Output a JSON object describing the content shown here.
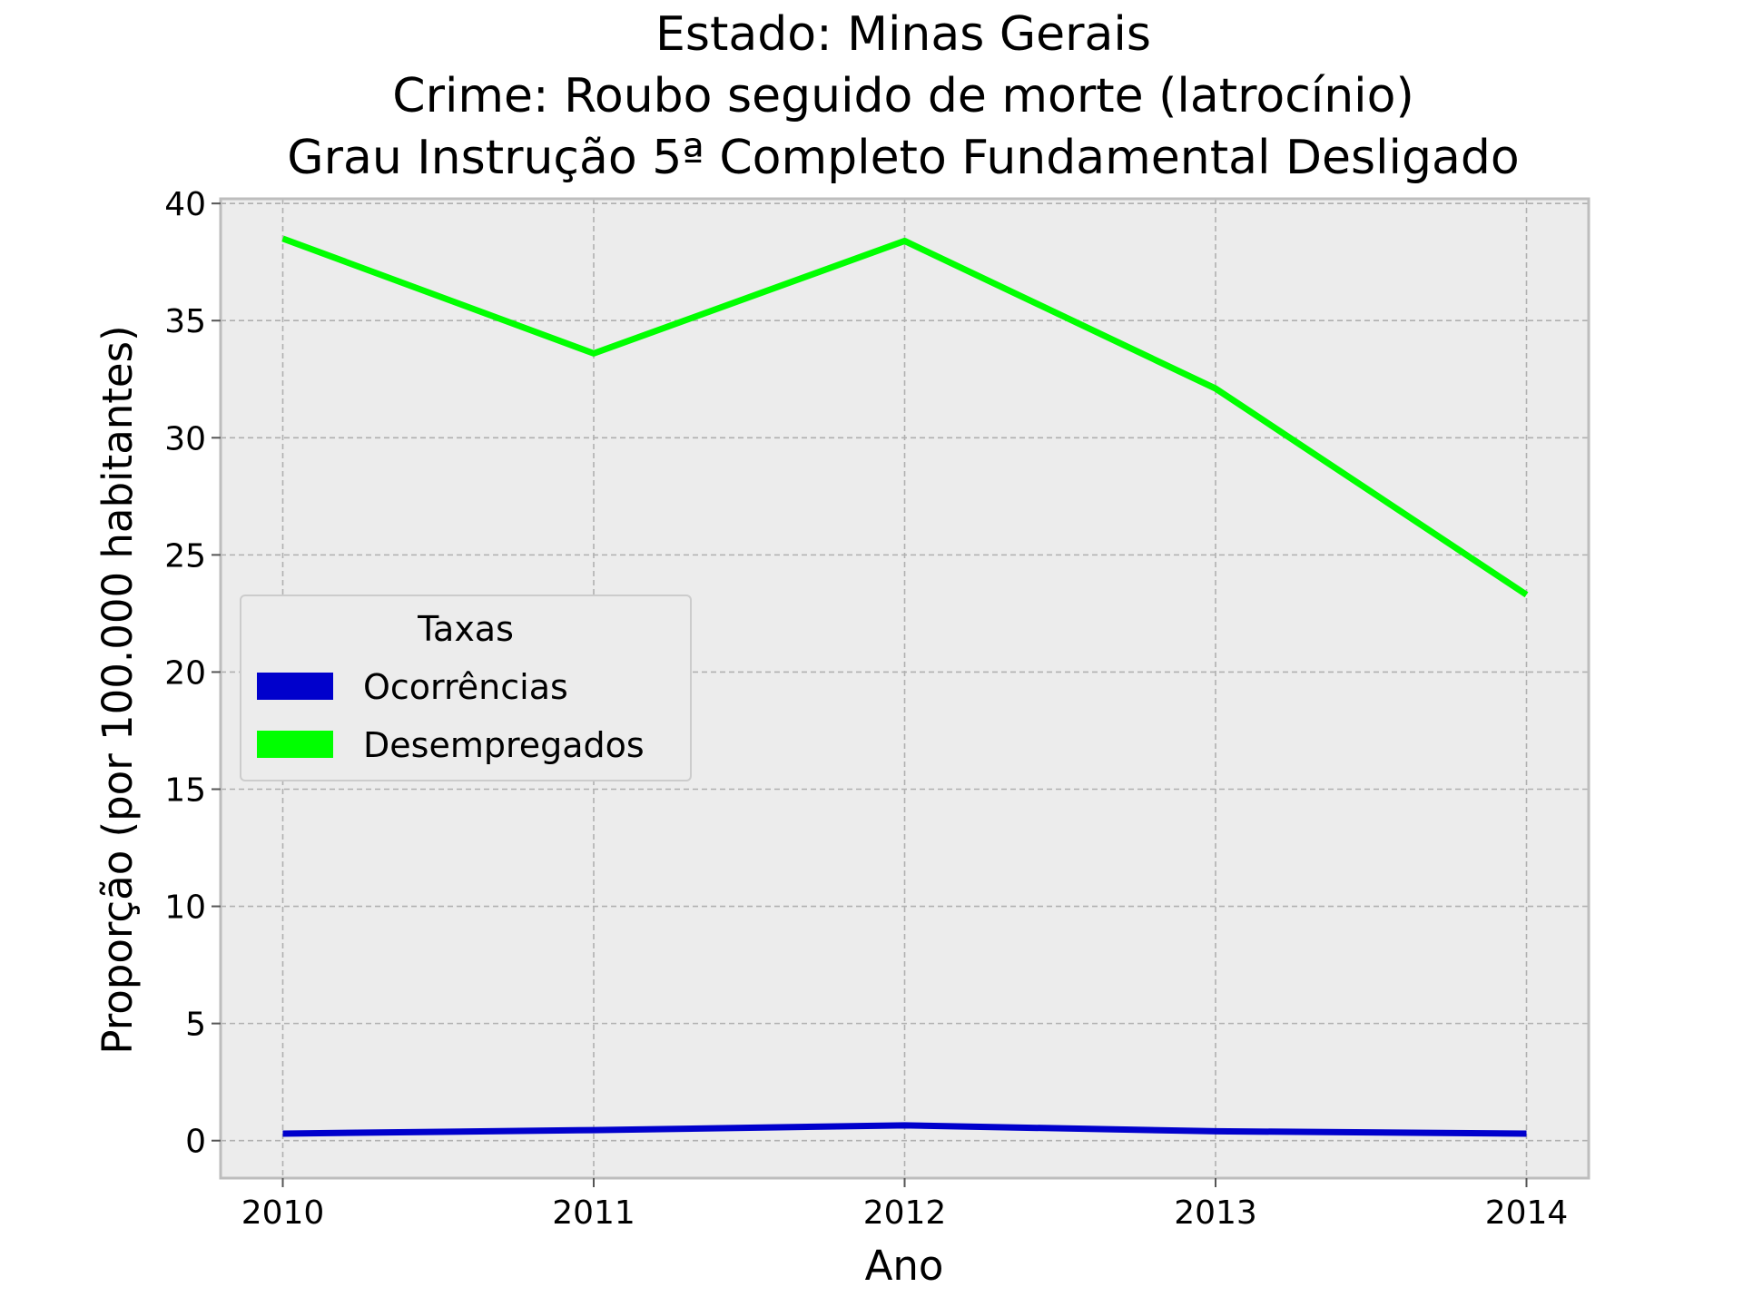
{
  "chart_data": {
    "type": "line",
    "title": [
      "Estado: Minas Gerais",
      "Crime: Roubo seguido de morte (latrocínio)",
      "Grau Instrução  5ª Completo Fundamental   Desligado"
    ],
    "xlabel": "Ano",
    "ylabel": "Proporção (por 100.000 habitantes)",
    "x": [
      2010,
      2011,
      2012,
      2013,
      2014
    ],
    "x_tick_labels": [
      "2010",
      "2011",
      "2012",
      "2013",
      "2014"
    ],
    "y_ticks": [
      0,
      5,
      10,
      15,
      20,
      25,
      30,
      35,
      40
    ],
    "y_tick_labels": [
      "0",
      "5",
      "10",
      "15",
      "20",
      "25",
      "30",
      "35",
      "40"
    ],
    "xlim": [
      2009.8,
      2014.2
    ],
    "ylim": [
      -1.6,
      40.2
    ],
    "grid": true,
    "legend": {
      "title": "Taxas",
      "placement": "center-left"
    },
    "series": [
      {
        "name": "Ocorrências",
        "color": "#0000cc",
        "values": [
          0.3,
          0.45,
          0.65,
          0.4,
          0.3
        ]
      },
      {
        "name": "Desempregados",
        "color": "#00ff00",
        "values": [
          38.5,
          33.6,
          38.4,
          32.1,
          23.3
        ]
      }
    ],
    "colors": {
      "plot_background": "#ececec",
      "axes_edge": "#bdbdbd"
    }
  }
}
